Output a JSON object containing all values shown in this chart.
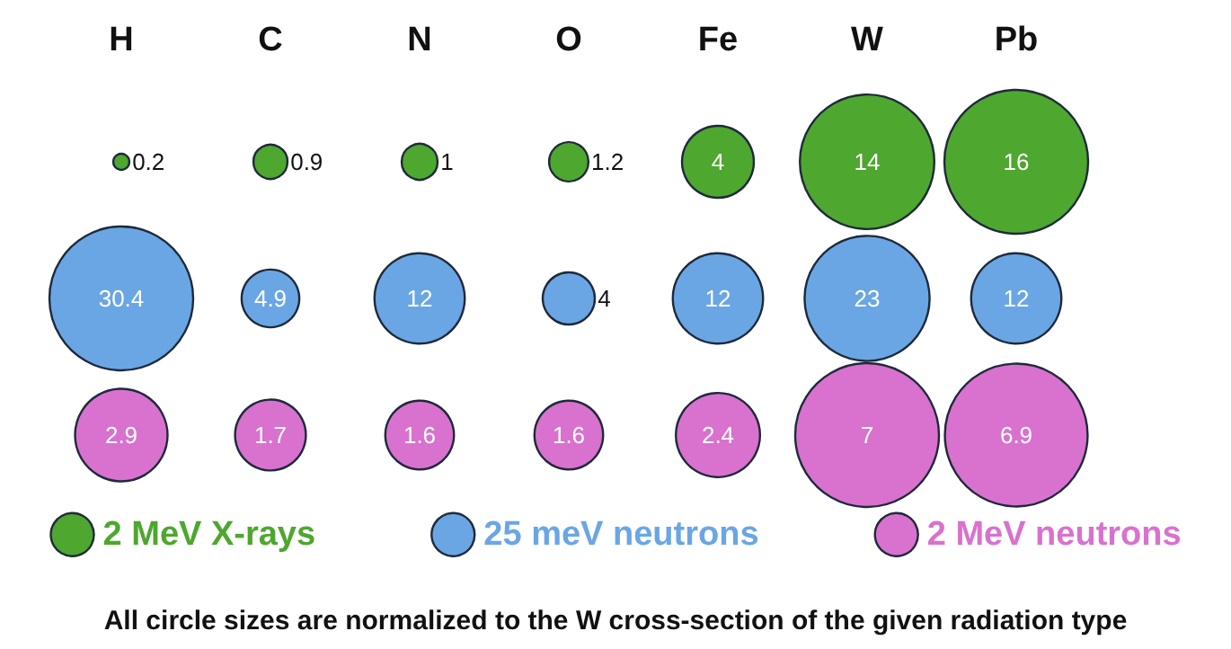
{
  "chart_data": {
    "type": "other",
    "categories": [
      "H",
      "C",
      "N",
      "O",
      "Fe",
      "W",
      "Pb"
    ],
    "series": [
      {
        "name": "2 MeV X-rays",
        "color": "#4ea72e",
        "values": [
          0.2,
          0.9,
          1,
          1.2,
          4,
          14,
          16
        ]
      },
      {
        "name": "25 meV neutrons",
        "color": "#6aa6e4",
        "values": [
          30.4,
          4.9,
          12,
          4,
          12,
          23,
          12
        ]
      },
      {
        "name": "2 MeV neutrons",
        "color": "#d971cf",
        "values": [
          2.9,
          1.7,
          1.6,
          1.6,
          2.4,
          7,
          6.9
        ]
      }
    ],
    "data_labels": true,
    "legend": "bottom",
    "annotations": [
      "All circle sizes are normalized to the W cross-section of the given radiation type"
    ]
  }
}
